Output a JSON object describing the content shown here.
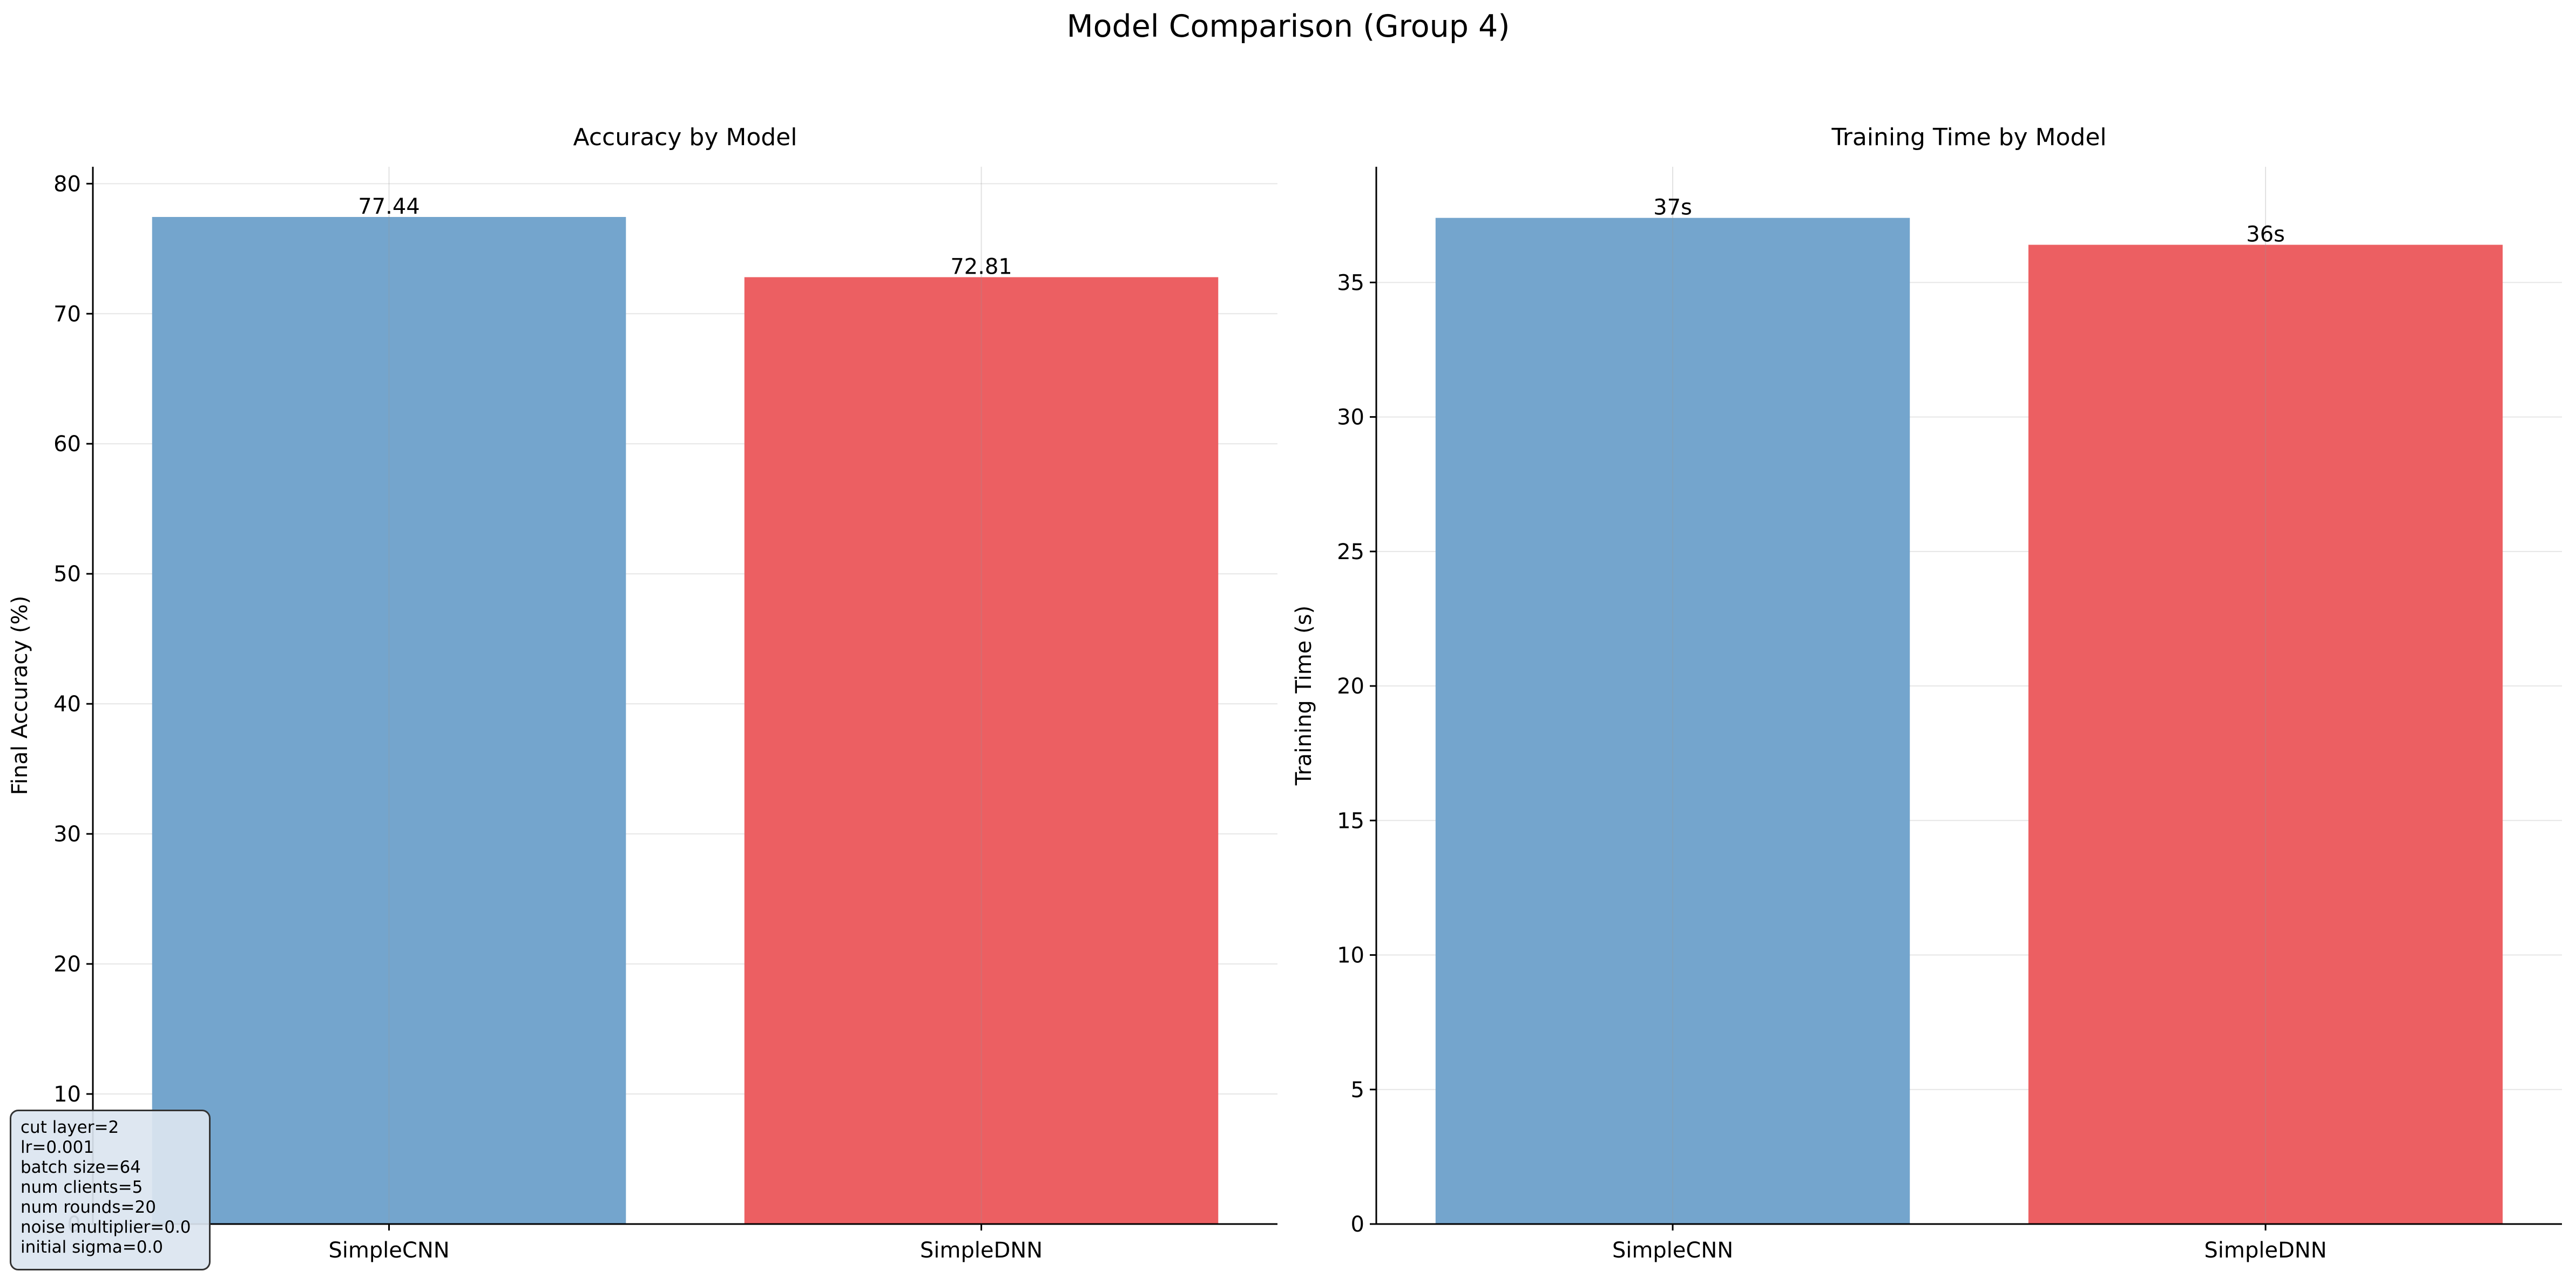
{
  "figure": {
    "suptitle": "Model Comparison (Group 4)"
  },
  "colors": {
    "SimpleCNN": "#74a5cd",
    "SimpleDNN": "#ec5f62",
    "grid": "#e6e6e6",
    "axis": "#000000"
  },
  "chart_data": [
    {
      "type": "bar",
      "title": "Accuracy by Model",
      "xlabel": "",
      "ylabel": "Final Accuracy (%)",
      "categories": [
        "SimpleCNN",
        "SimpleDNN"
      ],
      "values": [
        77.44,
        72.81
      ],
      "value_labels": [
        "77.44",
        "72.81"
      ],
      "ylim": [
        0,
        81.3
      ],
      "yticks": [
        0,
        10,
        20,
        30,
        40,
        50,
        60,
        70,
        80
      ],
      "grid": true,
      "legend": "none"
    },
    {
      "type": "bar",
      "title": "Training Time by Model",
      "xlabel": "",
      "ylabel": "Training Time (s)",
      "categories": [
        "SimpleCNN",
        "SimpleDNN"
      ],
      "values": [
        37.4,
        36.4
      ],
      "value_labels": [
        "37s",
        "36s"
      ],
      "ylim": [
        0,
        39.3
      ],
      "yticks": [
        0,
        5,
        10,
        15,
        20,
        25,
        30,
        35
      ],
      "grid": true,
      "legend": "none"
    }
  ],
  "params_box": {
    "lines": [
      "cut layer=2",
      "lr=0.001",
      "batch size=64",
      "num clients=5",
      "num rounds=20",
      "noise multiplier=0.0",
      "initial sigma=0.0"
    ]
  }
}
